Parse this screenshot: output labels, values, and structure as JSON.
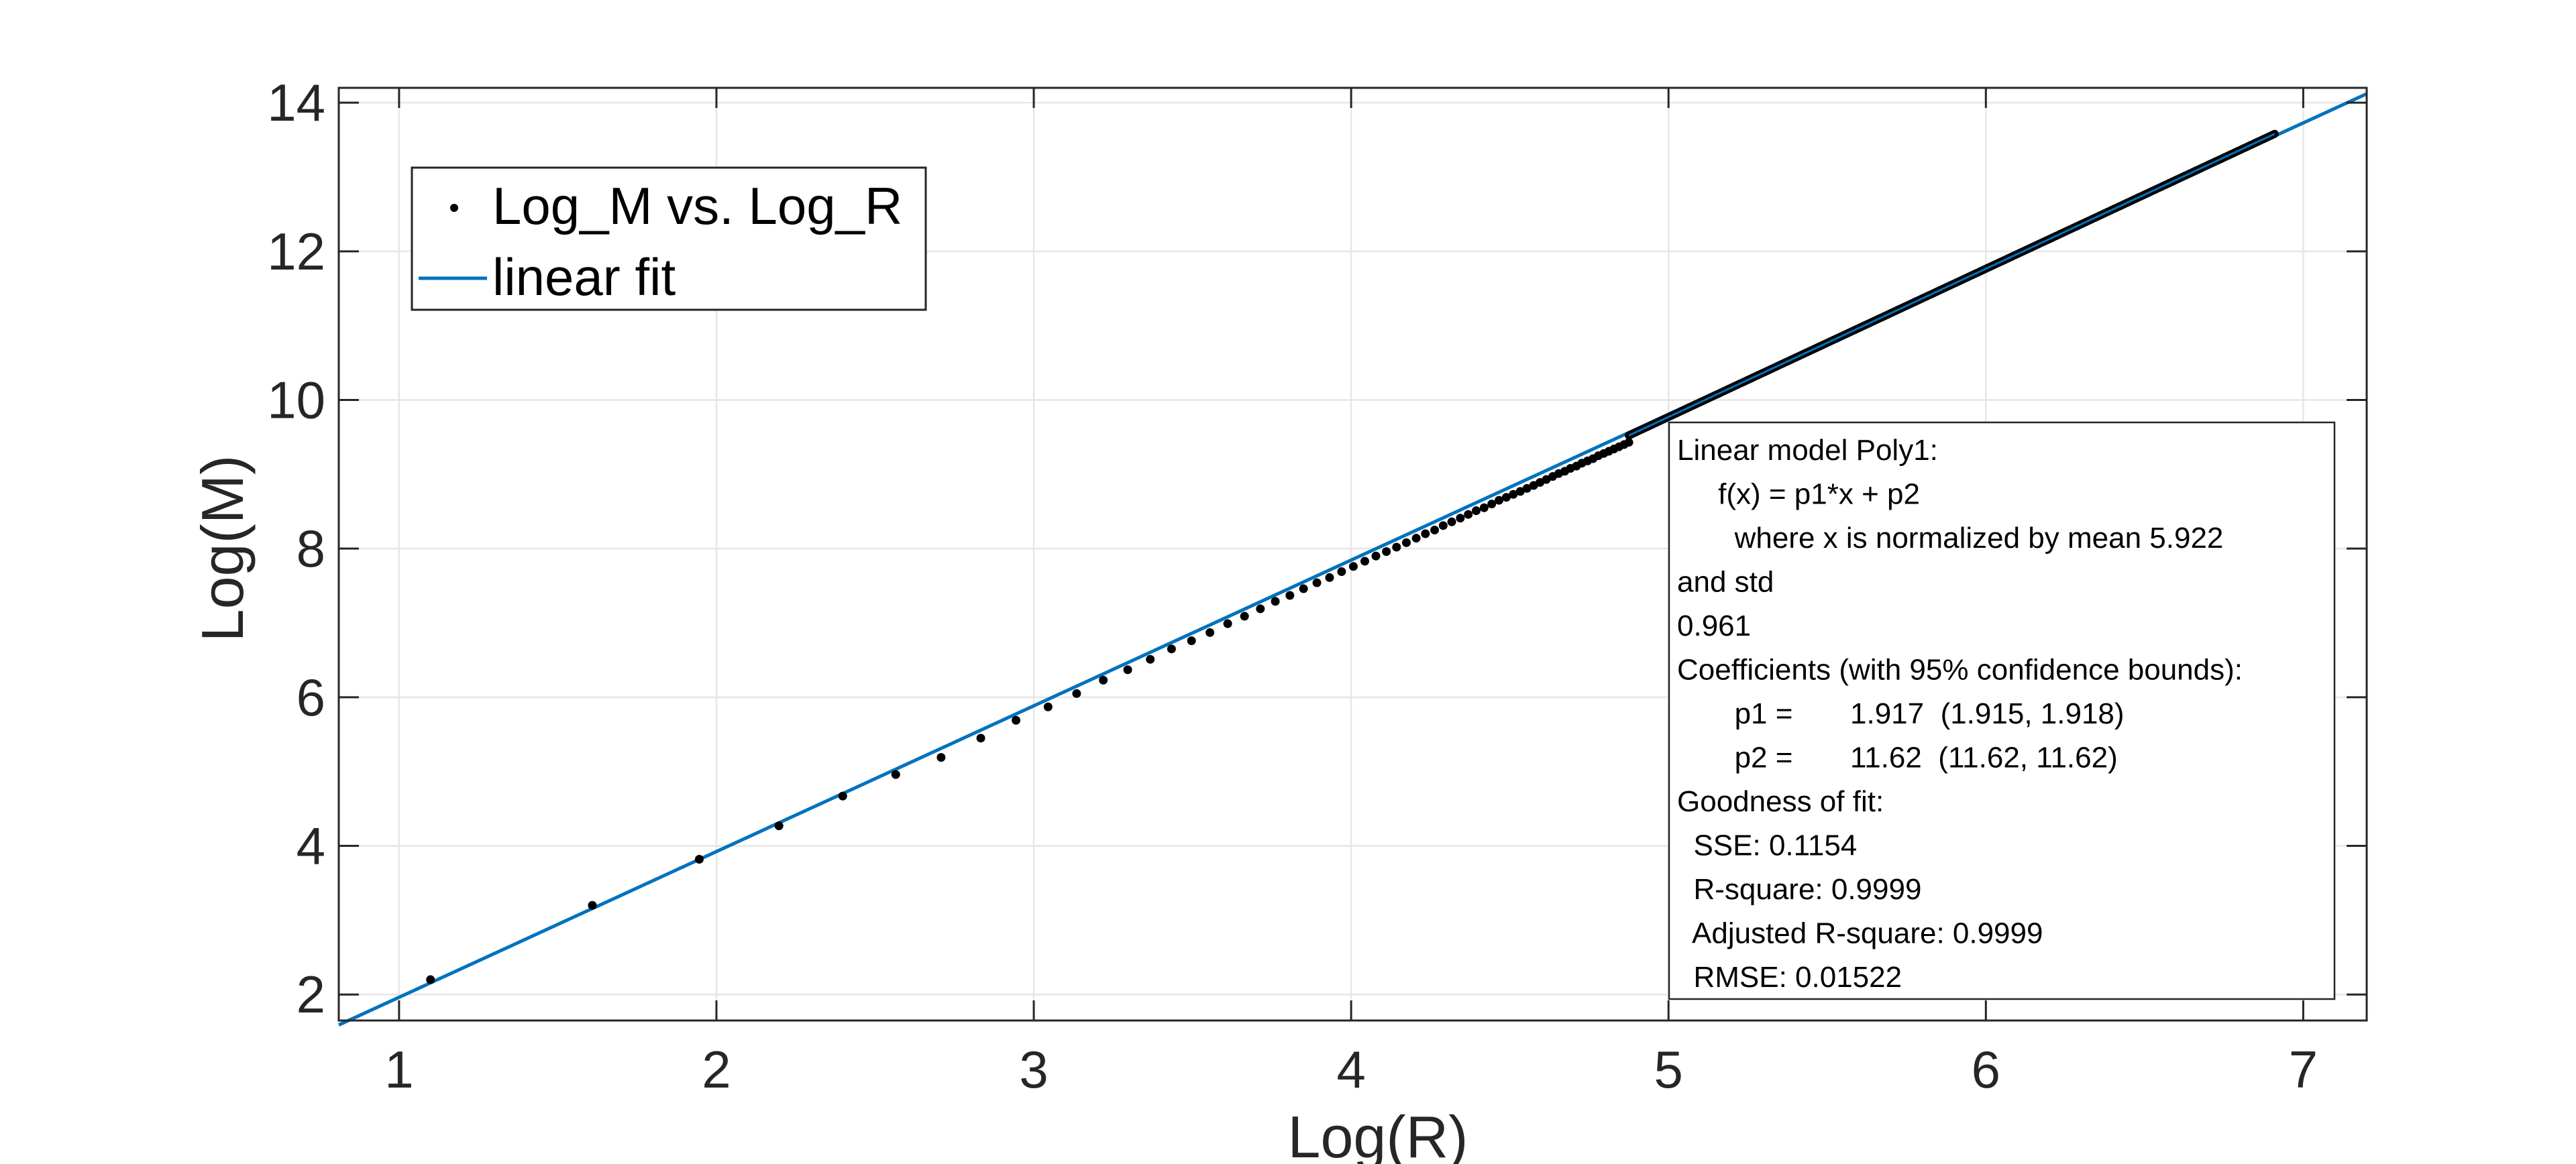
{
  "chart_data": {
    "type": "scatter",
    "title": "",
    "xlabel": "Log(R)",
    "ylabel": "Log(M)",
    "xlim": [
      0.81,
      7.2
    ],
    "ylim": [
      1.65,
      14.2
    ],
    "xticks": [
      1,
      2,
      3,
      4,
      5,
      6,
      7
    ],
    "yticks": [
      2,
      4,
      6,
      8,
      10,
      12,
      14
    ],
    "grid": true,
    "legend": {
      "placement": "top-left",
      "entries": [
        {
          "label": "Log_M vs. Log_R",
          "marker": "dot"
        },
        {
          "label": "linear fit",
          "marker": "line"
        }
      ]
    },
    "series": [
      {
        "name": "Log_M vs. Log_R",
        "color": "#000000",
        "x": [
          1.099,
          1.609,
          1.946,
          2.197,
          2.398,
          2.565,
          2.708,
          2.833,
          2.944,
          3.045,
          3.135,
          3.219,
          3.296,
          3.367,
          3.434,
          3.497,
          3.555,
          3.611,
          3.664,
          3.714,
          3.761,
          3.807,
          3.85,
          3.892,
          3.932,
          3.97,
          4.007,
          4.043,
          4.078,
          4.111,
          4.143,
          4.174,
          4.205,
          4.234,
          4.263,
          4.29,
          4.317,
          4.344,
          4.369,
          4.394,
          4.419,
          4.443,
          4.466,
          4.489,
          4.511,
          4.533,
          4.554,
          4.575,
          4.595,
          4.615,
          4.635,
          4.654,
          4.673,
          4.691,
          4.71,
          4.727,
          4.745,
          4.762,
          4.779,
          4.796,
          4.812,
          4.828,
          4.844,
          4.86,
          4.875
        ],
        "y": [
          2.2,
          3.2,
          3.82,
          4.27,
          4.67,
          4.96,
          5.19,
          5.45,
          5.69,
          5.87,
          6.05,
          6.23,
          6.37,
          6.51,
          6.65,
          6.76,
          6.87,
          6.99,
          7.09,
          7.19,
          7.29,
          7.37,
          7.46,
          7.54,
          7.61,
          7.69,
          7.76,
          7.83,
          7.9,
          7.96,
          8.02,
          8.08,
          8.14,
          8.2,
          8.25,
          8.31,
          8.36,
          8.41,
          8.46,
          8.51,
          8.55,
          8.6,
          8.65,
          8.69,
          8.73,
          8.77,
          8.81,
          8.85,
          8.89,
          8.93,
          8.97,
          9.01,
          9.04,
          9.08,
          9.11,
          9.15,
          9.18,
          9.21,
          9.25,
          9.28,
          9.31,
          9.34,
          9.37,
          9.4,
          9.43
        ],
        "dense_curve": {
          "x_range": [
            4.875,
            6.91
          ],
          "slope": 1.9947,
          "intercept": -0.2026
        }
      },
      {
        "name": "linear fit",
        "color": "#0072bd",
        "x": [
          0.81,
          7.2
        ],
        "y": [
          1.59,
          14.12
        ]
      }
    ],
    "annotation": {
      "lines": [
        "Linear model Poly1:",
        "     f(x) = p1*x + p2",
        "       where x is normalized by mean 5.922",
        "and std",
        "0.961",
        "Coefficients (with 95% confidence bounds):",
        "       p1 =       1.917  (1.915, 1.918)",
        "       p2 =       11.62  (11.62, 11.62)",
        "Goodness of fit:",
        "  SSE: 0.1154",
        "  R-square: 0.9999",
        "  Adjusted R-square: 0.9999",
        "  RMSE: 0.01522"
      ]
    }
  }
}
